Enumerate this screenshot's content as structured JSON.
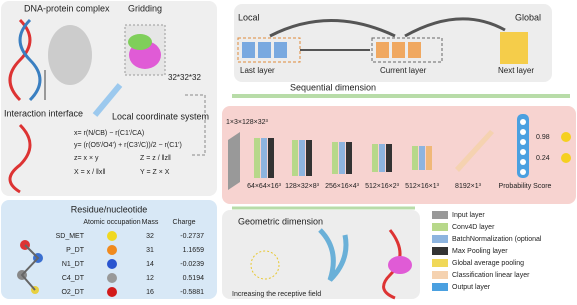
{
  "left_panel": {
    "complex_label": "DNA-protein complex",
    "gridding_label": "Gridding",
    "grid_size": "32*32*32",
    "interface_label": "Interaction interface",
    "coordinate_label": "Local coordinate system",
    "formulas": [
      "x= r(N/CB) − r(C1'/CA)",
      "y= (r(O5'/O4') + r(C3'/C))/2 − r(C1')",
      "z= x × y",
      "Z = z / ‖z‖",
      "X = x / ‖x‖",
      "Y = Z × X"
    ]
  },
  "residue_table": {
    "title": "Residue/nucleotide",
    "headers": [
      "Atomic occupation",
      "Mass",
      "Charge"
    ],
    "rows": [
      [
        "SD_MET",
        "32",
        "-0.2737"
      ],
      [
        "P_DT",
        "31",
        "1.1659"
      ],
      [
        "N1_DT",
        "14",
        "-0.0239"
      ],
      [
        "C4_DT",
        "12",
        "0.5194"
      ],
      [
        "O2_DT",
        "16",
        "-0.5881"
      ]
    ]
  },
  "sequential": {
    "local_label": "Local",
    "global_label": "Global",
    "last_layer": "Last layer",
    "current_layer": "Current layer",
    "next_layer": "Next layer",
    "title": "Sequential dimension"
  },
  "network": {
    "input_shape": "1×3×128×32³",
    "stage_shapes": [
      "64×64×16³",
      "128×32×8³",
      "256×16×4³",
      "512×16×2³",
      "512×16×1³",
      "8192×1³"
    ],
    "output_label": "Probability Score",
    "scores": [
      "0.98",
      "0.24"
    ]
  },
  "geometric": {
    "title": "Geometric dimension",
    "caption": "Increasing the receptive field"
  },
  "legend": [
    "Input layer",
    "Conv4D layer",
    "BatchNormalization (optional",
    "Max Pooling layer",
    "Global average pooling",
    "Classification linear layer",
    "Output layer"
  ]
}
